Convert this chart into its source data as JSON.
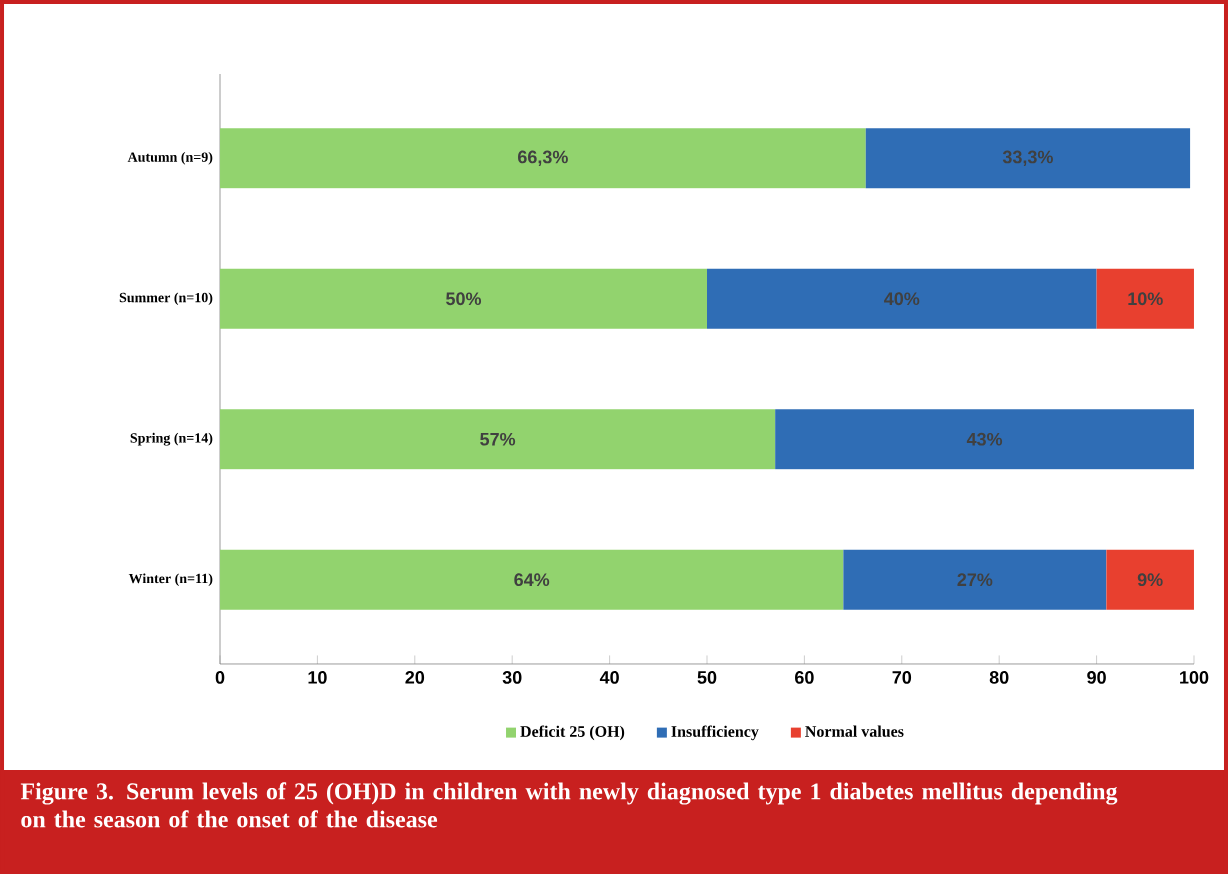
{
  "chart_data": {
    "type": "bar",
    "orientation": "horizontal",
    "stacked": true,
    "categories": [
      "Autumn (n=9)",
      "Summer (n=10)",
      "Spring (n=14)",
      "Winter (n=11)"
    ],
    "series": [
      {
        "name": "Deficit 25 (OH)",
        "color": "#92d36e",
        "values": [
          66.3,
          50,
          57,
          64
        ],
        "value_labels": [
          "66,3%",
          "50%",
          "57%",
          "64%"
        ]
      },
      {
        "name": "Insufficiency",
        "color": "#2f6db5",
        "values": [
          33.3,
          40,
          43,
          27
        ],
        "value_labels": [
          "33,3%",
          "40%",
          "43%",
          "27%"
        ]
      },
      {
        "name": "Normal values",
        "color": "#e8402f",
        "values": [
          null,
          10,
          null,
          9
        ],
        "value_labels": [
          null,
          "10%",
          null,
          "9%"
        ]
      }
    ],
    "xlim": [
      0,
      100
    ],
    "xticks": [
      0,
      10,
      20,
      30,
      40,
      50,
      60,
      70,
      80,
      90,
      100
    ],
    "legend": "bottom",
    "grid": false,
    "annotations": [
      "Figure 3. Serum levels of 25 (OH)D in children with newly diagnosed type 1 diabetes mellitus depending on the season of the onset of the disease"
    ]
  }
}
